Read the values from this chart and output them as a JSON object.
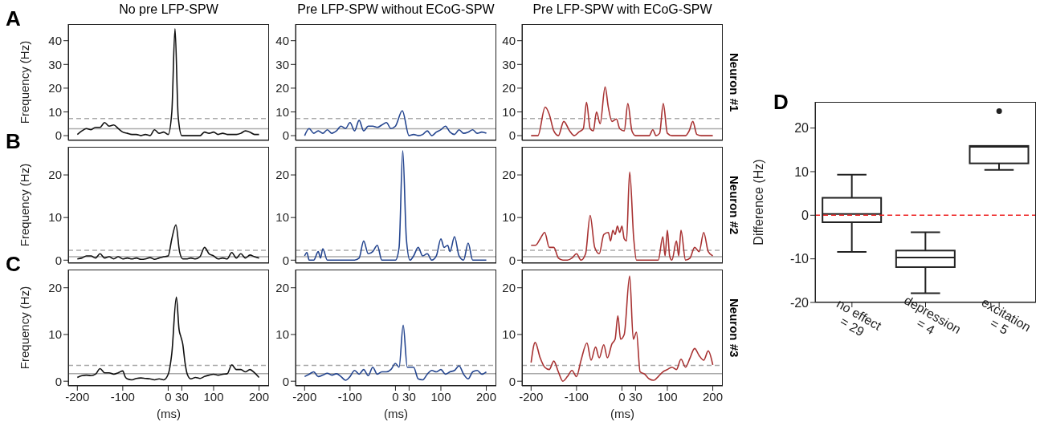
{
  "chart_data": [
    {
      "type": "line",
      "title": "No pre LFP-SPW",
      "ylabel": "Frequency (Hz)",
      "annotations": [
        "A"
      ],
      "tick_labels": "y",
      "color": "#111111",
      "x": [
        -200,
        -190,
        -180,
        -170,
        -160,
        -150,
        -140,
        -130,
        -120,
        -110,
        -100,
        -90,
        -80,
        -70,
        -60,
        -50,
        -40,
        -30,
        -20,
        -10,
        0,
        8,
        15,
        22,
        30,
        40,
        50,
        60,
        70,
        80,
        90,
        100,
        110,
        120,
        130,
        140,
        150,
        160,
        170,
        180,
        190,
        200
      ],
      "values": [
        0.5,
        2,
        3,
        2.5,
        3.5,
        3.5,
        5.5,
        4,
        4.5,
        3,
        1.5,
        1,
        0.5,
        0.5,
        0,
        0.5,
        0,
        2.5,
        1,
        1.5,
        0.5,
        10,
        45,
        8,
        0,
        0,
        0,
        0,
        0,
        1.5,
        1,
        1.5,
        0.5,
        1,
        0.5,
        0.5,
        0.5,
        1,
        2,
        1.5,
        0.5,
        0.5
      ],
      "xlim": [
        -220,
        222
      ],
      "xticks": [
        -200,
        -100,
        0,
        30,
        100,
        200
      ],
      "ylim": [
        -2,
        47
      ],
      "yticks": [
        0,
        10,
        20,
        30,
        40
      ],
      "ref_lines": [
        {
          "axis": "y",
          "value": 2.9,
          "color": "#aaaaaa",
          "line_style": "solid"
        },
        {
          "axis": "y",
          "value": 7.2,
          "color": "#aaaaaa",
          "line_style": "dashed"
        }
      ]
    },
    {
      "type": "line",
      "title": "Pre LFP-SPW without ECoG-SPW",
      "tick_labels": "y",
      "color": "#24458f",
      "x": [
        -200,
        -190,
        -180,
        -170,
        -160,
        -150,
        -140,
        -130,
        -120,
        -110,
        -100,
        -90,
        -80,
        -70,
        -60,
        -50,
        -40,
        -30,
        -20,
        -10,
        0,
        15,
        30,
        40,
        50,
        60,
        70,
        80,
        90,
        100,
        110,
        120,
        130,
        140,
        150,
        160,
        170,
        180,
        190,
        200
      ],
      "values": [
        0,
        3,
        1,
        2,
        1,
        2.5,
        1,
        2,
        4,
        3,
        5.5,
        2,
        6.5,
        2,
        4,
        4,
        3.5,
        4.5,
        5.5,
        3,
        4,
        10.5,
        0,
        0.5,
        0,
        0.5,
        2,
        0,
        1.5,
        2.5,
        4,
        1.5,
        0.5,
        2.5,
        1,
        1.5,
        2.5,
        1,
        1.5,
        1
      ],
      "xlim": [
        -220,
        222
      ],
      "xticks": [
        -200,
        -100,
        0,
        30,
        100,
        200
      ],
      "ylim": [
        -2,
        47
      ],
      "yticks": [
        0,
        10,
        20,
        30,
        40
      ],
      "ref_lines": [
        {
          "axis": "y",
          "value": 2.9,
          "color": "#aaaaaa",
          "line_style": "solid"
        },
        {
          "axis": "y",
          "value": 7.2,
          "color": "#aaaaaa",
          "line_style": "dashed"
        }
      ]
    },
    {
      "type": "line",
      "title": "Pre LFP-SPW with ECoG-SPW",
      "annotations": [
        "Neuron #1"
      ],
      "tick_labels": "y",
      "color": "#a83232",
      "x": [
        -200,
        -185,
        -169,
        -160,
        -150,
        -140,
        -128,
        -115,
        -105,
        -95,
        -85,
        -78,
        -70,
        -63,
        -56,
        -48,
        -37,
        -30,
        -22,
        -12,
        -5,
        5,
        13,
        22,
        30,
        40,
        50,
        60,
        68,
        75,
        83,
        91,
        100,
        110,
        120,
        130,
        140,
        148,
        156,
        165,
        175,
        190,
        200
      ],
      "values": [
        0,
        0,
        12,
        9,
        2,
        0,
        6,
        2,
        0,
        1.5,
        3,
        14,
        3,
        2,
        10,
        5,
        20.5,
        12,
        6,
        7,
        3,
        2,
        13.5,
        2,
        0,
        0,
        0,
        0,
        2.5,
        0,
        1,
        13.5,
        1,
        0,
        0,
        0,
        0,
        2,
        6,
        0.5,
        0,
        0,
        0
      ],
      "xlim": [
        -220,
        222
      ],
      "xticks": [
        -200,
        -100,
        0,
        30,
        100,
        200
      ],
      "ylim": [
        -2,
        47
      ],
      "yticks": [
        0,
        10,
        20,
        30,
        40
      ],
      "ref_lines": [
        {
          "axis": "y",
          "value": 2.9,
          "color": "#aaaaaa",
          "line_style": "solid"
        },
        {
          "axis": "y",
          "value": 7.2,
          "color": "#aaaaaa",
          "line_style": "dashed"
        }
      ]
    },
    {
      "type": "line",
      "ylabel": "Frequency (Hz)",
      "annotations": [
        "B"
      ],
      "tick_labels": "y",
      "color": "#111111",
      "x": [
        -200,
        -190,
        -180,
        -170,
        -160,
        -150,
        -140,
        -130,
        -120,
        -110,
        -100,
        -90,
        -80,
        -70,
        -60,
        -50,
        -40,
        -30,
        -20,
        -10,
        0,
        8,
        17,
        25,
        32,
        40,
        50,
        60,
        70,
        80,
        90,
        100,
        110,
        120,
        130,
        140,
        150,
        160,
        170,
        180,
        190,
        200
      ],
      "values": [
        0.3,
        0.5,
        1,
        1,
        0.5,
        1.5,
        0.5,
        0.8,
        0.3,
        0.8,
        0.3,
        0.5,
        0.3,
        0.5,
        0.2,
        0.3,
        0.6,
        0.2,
        0.5,
        0.8,
        1,
        5,
        8.3,
        2,
        0.3,
        0.3,
        0.5,
        0.3,
        0.8,
        3,
        1.5,
        1,
        0.3,
        0.5,
        0.3,
        1.8,
        0.5,
        1.5,
        0.5,
        1.2,
        0.8,
        0.5
      ],
      "xlim": [
        -220,
        222
      ],
      "xticks": [
        -200,
        -100,
        0,
        30,
        100,
        200
      ],
      "ylim": [
        -0.7,
        26.6
      ],
      "yticks": [
        0,
        10,
        20
      ],
      "ref_lines": [
        {
          "axis": "y",
          "value": 0.8,
          "color": "#aaaaaa",
          "line_style": "solid"
        },
        {
          "axis": "y",
          "value": 2.3,
          "color": "#aaaaaa",
          "line_style": "dashed"
        }
      ]
    },
    {
      "type": "line",
      "tick_labels": "y",
      "color": "#24458f",
      "x": [
        -200,
        -195,
        -190,
        -180,
        -170,
        -165,
        -160,
        -150,
        -140,
        -130,
        -120,
        -110,
        -100,
        -90,
        -80,
        -70,
        -60,
        -50,
        -40,
        -30,
        -20,
        -10,
        0,
        8,
        16,
        24,
        32,
        40,
        50,
        60,
        70,
        80,
        90,
        100,
        107,
        115,
        120,
        130,
        140,
        150,
        160,
        170,
        180,
        190,
        200
      ],
      "values": [
        1,
        1.8,
        0,
        0,
        2,
        0.5,
        2.7,
        0,
        0,
        0,
        0,
        0,
        0,
        0,
        0.5,
        4.5,
        1.5,
        2,
        3.5,
        0,
        0,
        0,
        0,
        3,
        25.7,
        5,
        0,
        1,
        3,
        1,
        1.5,
        0,
        1,
        5,
        3,
        3.5,
        2,
        5.5,
        1,
        0,
        4,
        0,
        0,
        0,
        0
      ],
      "xlim": [
        -220,
        222
      ],
      "xticks": [
        -200,
        -100,
        0,
        30,
        100,
        200
      ],
      "ylim": [
        -0.7,
        26.6
      ],
      "yticks": [
        0,
        10,
        20
      ],
      "ref_lines": [
        {
          "axis": "y",
          "value": 0.8,
          "color": "#aaaaaa",
          "line_style": "solid"
        },
        {
          "axis": "y",
          "value": 2.3,
          "color": "#aaaaaa",
          "line_style": "dashed"
        }
      ]
    },
    {
      "type": "line",
      "annotations": [
        "Neuron #2"
      ],
      "tick_labels": "y",
      "color": "#a83232",
      "x": [
        -200,
        -190,
        -180,
        -170,
        -160,
        -150,
        -140,
        -130,
        -120,
        -110,
        -100,
        -90,
        -80,
        -70,
        -60,
        -50,
        -40,
        -30,
        -25,
        -20,
        -15,
        -10,
        -5,
        0,
        5,
        10,
        17,
        26,
        32,
        40,
        50,
        60,
        70,
        80,
        90,
        95,
        100,
        105,
        110,
        120,
        125,
        130,
        140,
        150,
        160,
        170,
        180,
        190,
        200
      ],
      "values": [
        3.5,
        3.5,
        5,
        6.5,
        3,
        3,
        0.5,
        0,
        0,
        0.5,
        1.5,
        0,
        1.5,
        10.5,
        3,
        1.5,
        6,
        6.5,
        4.5,
        7,
        6,
        8,
        6.5,
        8,
        5,
        4.5,
        20.7,
        5,
        0,
        0,
        0,
        0,
        0,
        0,
        5.5,
        1,
        7,
        1,
        0,
        4.5,
        1,
        7,
        0,
        0.5,
        3,
        2,
        6.5,
        2,
        1
      ],
      "xlim": [
        -220,
        222
      ],
      "xticks": [
        -200,
        -100,
        0,
        30,
        100,
        200
      ],
      "ylim": [
        -0.7,
        26.6
      ],
      "yticks": [
        0,
        10,
        20
      ],
      "ref_lines": [
        {
          "axis": "y",
          "value": 0.8,
          "color": "#aaaaaa",
          "line_style": "solid"
        },
        {
          "axis": "y",
          "value": 2.3,
          "color": "#aaaaaa",
          "line_style": "dashed"
        }
      ]
    },
    {
      "type": "line",
      "ylabel": "Frequency (Hz)",
      "xlabel": "(ms)",
      "annotations": [
        "C"
      ],
      "color": "#111111",
      "x": [
        -200,
        -190,
        -180,
        -170,
        -160,
        -150,
        -140,
        -130,
        -120,
        -110,
        -100,
        -95,
        -90,
        -80,
        -70,
        -60,
        -50,
        -40,
        -30,
        -20,
        -10,
        0,
        8,
        18,
        24,
        28,
        32,
        37,
        42,
        50,
        60,
        70,
        80,
        90,
        100,
        110,
        120,
        130,
        140,
        150,
        160,
        170,
        180,
        190,
        200
      ],
      "values": [
        0.8,
        1.2,
        1.3,
        1.2,
        1.5,
        2.7,
        1.8,
        1.8,
        1.5,
        1.8,
        2.2,
        1,
        0.5,
        0.3,
        0.6,
        0.7,
        0.6,
        0.5,
        0.3,
        0.5,
        0.3,
        1.5,
        6,
        18,
        11,
        9.5,
        8,
        4,
        1.5,
        0.5,
        0.8,
        0.6,
        1,
        1.3,
        1.5,
        1.3,
        1.5,
        1.6,
        3.5,
        2.5,
        2.5,
        2,
        2.5,
        1.8,
        0.8
      ],
      "xlim": [
        -220,
        222
      ],
      "xticks": [
        -200,
        -100,
        0,
        30,
        100,
        200
      ],
      "ylim": [
        -1,
        23.9
      ],
      "yticks": [
        0,
        10,
        20
      ],
      "ref_lines": [
        {
          "axis": "y",
          "value": 1.6,
          "color": "#aaaaaa",
          "line_style": "solid"
        },
        {
          "axis": "y",
          "value": 3.4,
          "color": "#aaaaaa",
          "line_style": "dashed"
        }
      ]
    },
    {
      "type": "line",
      "xlabel": "(ms)",
      "color": "#24458f",
      "x": [
        -200,
        -190,
        -180,
        -170,
        -160,
        -150,
        -140,
        -130,
        -120,
        -110,
        -100,
        -90,
        -80,
        -70,
        -60,
        -50,
        -40,
        -30,
        -20,
        -10,
        0,
        8,
        17,
        26,
        40,
        50,
        60,
        70,
        80,
        90,
        100,
        110,
        120,
        130,
        140,
        150,
        160,
        170,
        180,
        190,
        200
      ],
      "values": [
        1,
        1.5,
        2,
        1,
        1.3,
        1.7,
        1.3,
        1.6,
        1,
        0.2,
        1,
        2.3,
        1.5,
        2.5,
        1.2,
        3,
        1.5,
        2,
        2,
        2.5,
        3.8,
        3,
        12,
        3,
        3,
        0.5,
        0.3,
        1.5,
        2.3,
        2,
        2.5,
        1.5,
        2,
        2.3,
        3.3,
        1.5,
        0.5,
        2,
        2.3,
        1.5,
        2
      ],
      "xlim": [
        -220,
        222
      ],
      "xticks": [
        -200,
        -100,
        0,
        30,
        100,
        200
      ],
      "ylim": [
        -1,
        23.9
      ],
      "yticks": [
        0,
        10,
        20
      ],
      "ref_lines": [
        {
          "axis": "y",
          "value": 1.6,
          "color": "#aaaaaa",
          "line_style": "solid"
        },
        {
          "axis": "y",
          "value": 3.4,
          "color": "#aaaaaa",
          "line_style": "dashed"
        }
      ]
    },
    {
      "type": "line",
      "xlabel": "(ms)",
      "annotations": [
        "Neuron #3"
      ],
      "color": "#a83232",
      "x": [
        -200,
        -191,
        -180,
        -170,
        -160,
        -150,
        -140,
        -130,
        -120,
        -110,
        -100,
        -90,
        -77,
        -68,
        -58,
        -50,
        -40,
        -32,
        -22,
        -15,
        -9,
        -3,
        5,
        17,
        25,
        32,
        40,
        50,
        60,
        70,
        80,
        90,
        100,
        110,
        120,
        130,
        140,
        150,
        160,
        170,
        180,
        190,
        200
      ],
      "values": [
        4,
        8.3,
        5,
        3,
        2.5,
        4.3,
        2,
        0,
        1,
        2.3,
        1,
        4.5,
        8.2,
        4.5,
        7.3,
        5,
        7.8,
        5,
        8,
        9,
        14,
        9,
        10,
        22.5,
        9,
        10.5,
        2,
        1.5,
        0.5,
        0.2,
        1,
        2,
        2.5,
        3,
        2.5,
        4.7,
        3,
        5,
        7,
        5.5,
        4.5,
        6.5,
        3.5
      ],
      "xlim": [
        -220,
        222
      ],
      "xticks": [
        -200,
        -100,
        0,
        30,
        100,
        200
      ],
      "ylim": [
        -1,
        23.9
      ],
      "yticks": [
        0,
        10,
        20
      ],
      "ref_lines": [
        {
          "axis": "y",
          "value": 1.6,
          "color": "#aaaaaa",
          "line_style": "solid"
        },
        {
          "axis": "y",
          "value": 3.4,
          "color": "#aaaaaa",
          "line_style": "dashed"
        }
      ]
    },
    {
      "type": "box",
      "ylabel": "Difference (Hz)",
      "annotations": [
        "D"
      ],
      "color": "#222222",
      "categories": [
        "no effect\n= 29",
        "depression\n= 4",
        "excitation\n= 5"
      ],
      "boxes": [
        {
          "low": -8.4,
          "q1": -1.6,
          "median": 0.3,
          "q3": 4,
          "high": 9.3
        },
        {
          "low": -17.9,
          "q1": -11.9,
          "median": -9.7,
          "q3": -8.1,
          "high": -3.9
        },
        {
          "low": 10.4,
          "q1": 11.9,
          "median": 15.7,
          "q3": 15.9,
          "high": 15.9,
          "outliers": [
            23.9
          ]
        }
      ],
      "ylim": [
        -20,
        26
      ],
      "yticks": [
        -20,
        -10,
        0,
        10,
        20
      ],
      "ref_lines": [
        {
          "axis": "y",
          "value": 0,
          "color": "#ee2222",
          "line_style": "dashed"
        }
      ]
    }
  ]
}
